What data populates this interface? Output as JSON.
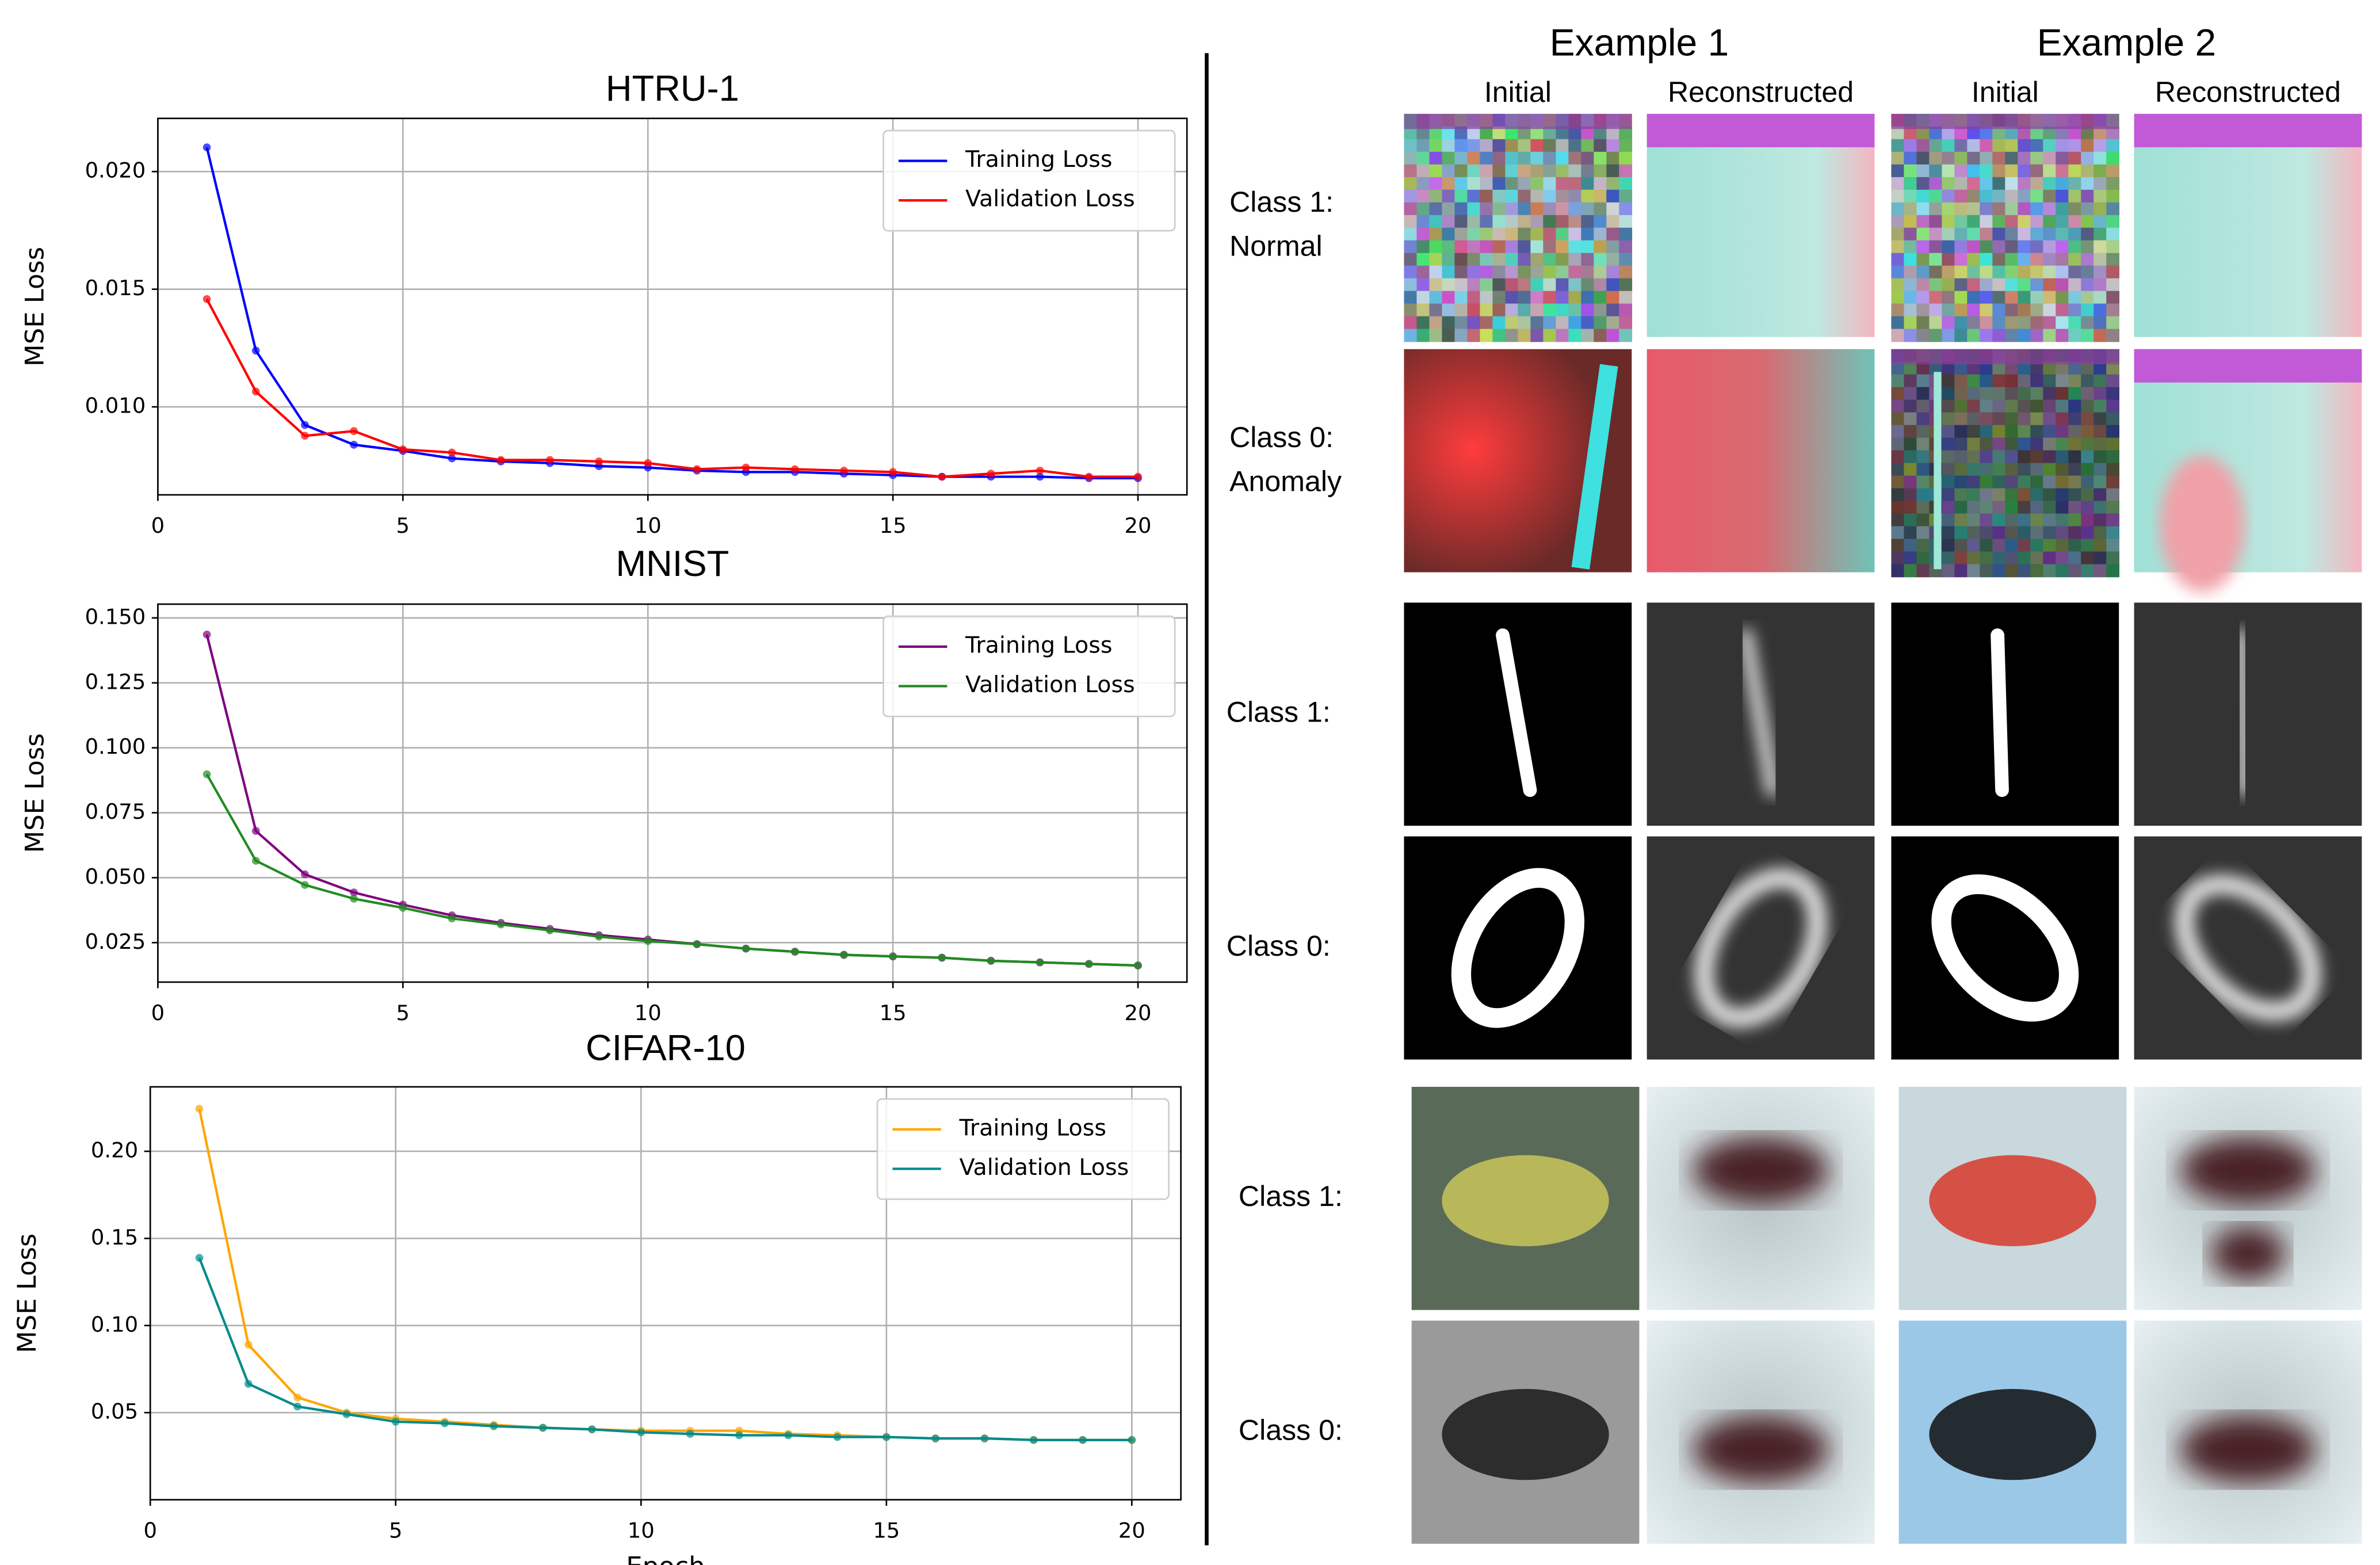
{
  "chart_data": [
    {
      "type": "line",
      "title": "HTRU-1",
      "ylabel": "MSE Loss",
      "x": [
        1,
        2,
        3,
        4,
        5,
        6,
        7,
        8,
        9,
        10,
        11,
        12,
        13,
        14,
        15,
        16,
        17,
        18,
        19,
        20
      ],
      "series": [
        {
          "name": "Training Loss",
          "color": "#0000ff",
          "values": [
            0.02103,
            0.01239,
            0.00923,
            0.00839,
            0.00813,
            0.00781,
            0.00768,
            0.00761,
            0.00748,
            0.00742,
            0.00729,
            0.00723,
            0.00723,
            0.00716,
            0.0071,
            0.00703,
            0.00703,
            0.00703,
            0.00697,
            0.00697
          ]
        },
        {
          "name": "Validation Loss",
          "color": "#ff0000",
          "values": [
            0.01458,
            0.01065,
            0.00877,
            0.00897,
            0.00819,
            0.00806,
            0.00774,
            0.00774,
            0.00768,
            0.00761,
            0.00735,
            0.00742,
            0.00735,
            0.00729,
            0.00723,
            0.00703,
            0.00716,
            0.00729,
            0.00703,
            0.00703
          ]
        }
      ],
      "xlim": [
        0,
        21
      ],
      "ylim": [
        0.00626,
        0.02226
      ],
      "xticks": [
        0,
        5,
        10,
        15,
        20
      ],
      "yticks": [
        {
          "value": 0.01,
          "label": "0.010"
        },
        {
          "value": 0.015,
          "label": "0.015"
        },
        {
          "value": 0.02,
          "label": "0.020"
        }
      ],
      "grid": true,
      "legend": "upper right"
    },
    {
      "type": "line",
      "title": "MNIST",
      "ylabel": "MSE Loss",
      "x": [
        1,
        2,
        3,
        4,
        5,
        6,
        7,
        8,
        9,
        10,
        11,
        12,
        13,
        14,
        15,
        16,
        17,
        18,
        19,
        20
      ],
      "series": [
        {
          "name": "Training Loss",
          "color": "#800080",
          "values": [
            0.1436,
            0.068,
            0.0513,
            0.0443,
            0.0396,
            0.0355,
            0.0326,
            0.0303,
            0.0279,
            0.0262,
            0.0244,
            0.0227,
            0.0215,
            0.0203,
            0.0197,
            0.0192,
            0.018,
            0.0174,
            0.0168,
            0.0162
          ]
        },
        {
          "name": "Validation Loss",
          "color": "#228b22",
          "values": [
            0.0898,
            0.0565,
            0.0472,
            0.0419,
            0.0384,
            0.0343,
            0.032,
            0.0297,
            0.0273,
            0.0256,
            0.0244,
            0.0227,
            0.0215,
            0.0203,
            0.0197,
            0.0192,
            0.018,
            0.0174,
            0.0168,
            0.0162
          ]
        }
      ],
      "xlim": [
        0,
        21
      ],
      "ylim": [
        0.0098,
        0.1553
      ],
      "xticks": [
        0,
        5,
        10,
        15,
        20
      ],
      "yticks": [
        {
          "value": 0.025,
          "label": "0.025"
        },
        {
          "value": 0.05,
          "label": "0.050"
        },
        {
          "value": 0.075,
          "label": "0.075"
        },
        {
          "value": 0.1,
          "label": "0.100"
        },
        {
          "value": 0.125,
          "label": "0.125"
        },
        {
          "value": 0.15,
          "label": "0.150"
        }
      ],
      "grid": true,
      "legend": "upper right"
    },
    {
      "type": "line",
      "title": "CIFAR-10",
      "xlabel": "Epoch",
      "ylabel": "MSE Loss",
      "x": [
        1,
        2,
        3,
        4,
        5,
        6,
        7,
        8,
        9,
        10,
        11,
        12,
        13,
        14,
        15,
        16,
        17,
        18,
        19,
        20
      ],
      "series": [
        {
          "name": "Training Loss",
          "color": "#ffa500",
          "values": [
            0.2244,
            0.089,
            0.0587,
            0.05,
            0.0465,
            0.0448,
            0.043,
            0.0413,
            0.0404,
            0.0396,
            0.0396,
            0.0396,
            0.0378,
            0.037,
            0.036,
            0.0352,
            0.0352,
            0.0343,
            0.0343,
            0.0343
          ]
        },
        {
          "name": "Validation Loss",
          "color": "#008b8b",
          "values": [
            0.1388,
            0.0665,
            0.0535,
            0.0491,
            0.0448,
            0.0439,
            0.0422,
            0.0413,
            0.0404,
            0.0387,
            0.0378,
            0.037,
            0.037,
            0.036,
            0.036,
            0.0352,
            0.0352,
            0.0343,
            0.0343,
            0.0343
          ]
        }
      ],
      "xlim": [
        0,
        21
      ],
      "ylim": [
        0,
        0.237
      ],
      "xticks": [
        0,
        5,
        10,
        15,
        20
      ],
      "yticks": [
        {
          "value": 0.05,
          "label": "0.05"
        },
        {
          "value": 0.1,
          "label": "0.10"
        },
        {
          "value": 0.15,
          "label": "0.15"
        },
        {
          "value": 0.2,
          "label": "0.20"
        }
      ],
      "grid": true,
      "legend": "upper right"
    }
  ],
  "image_grid": {
    "columns": [
      {
        "title": "Example 1",
        "subtitles": [
          "Initial",
          "Reconstructed"
        ]
      },
      {
        "title": "Example 2",
        "subtitles": [
          "Initial",
          "Reconstructed"
        ]
      }
    ],
    "rows": [
      [
        "Class 1:",
        "Normal"
      ],
      [
        "Class 0:",
        "Anomaly"
      ],
      [
        "Class 1:"
      ],
      [
        "Class 0:"
      ],
      [
        "Class 1:"
      ],
      [
        "Class 0:"
      ]
    ]
  }
}
